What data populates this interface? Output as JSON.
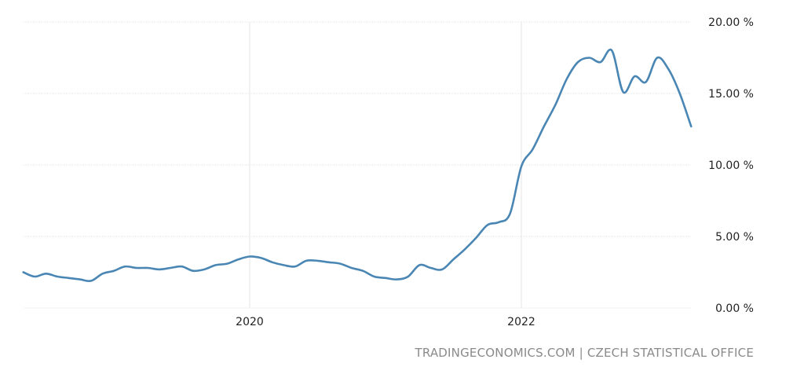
{
  "source_text": "TRADINGECONOMICS.COM | CZECH STATISTICAL OFFICE",
  "chart_data": {
    "type": "line",
    "title": "",
    "xlabel": "",
    "ylabel": "",
    "ylim": [
      0,
      20
    ],
    "y_ticks": [
      "0.00 %",
      "5.00 %",
      "10.00 %",
      "15.00 %",
      "20.00 %"
    ],
    "y_tick_values": [
      0,
      5,
      10,
      15,
      20
    ],
    "x_ticks": [
      "2020",
      "2022"
    ],
    "x_tick_values": [
      "2020-01",
      "2022-01"
    ],
    "grid": true,
    "colors": {
      "series": "#4a86b4",
      "grid": "#e6e6e6",
      "text": "#222222",
      "source": "#8a8a8a"
    },
    "series": [
      {
        "x": [
          "2018-05",
          "2018-06",
          "2018-07",
          "2018-08",
          "2018-09",
          "2018-10",
          "2018-11",
          "2018-12",
          "2019-01",
          "2019-02",
          "2019-03",
          "2019-04",
          "2019-05",
          "2019-06",
          "2019-07",
          "2019-08",
          "2019-09",
          "2019-10",
          "2019-11",
          "2019-12",
          "2020-01",
          "2020-02",
          "2020-03",
          "2020-04",
          "2020-05",
          "2020-06",
          "2020-07",
          "2020-08",
          "2020-09",
          "2020-10",
          "2020-11",
          "2020-12",
          "2021-01",
          "2021-02",
          "2021-03",
          "2021-04",
          "2021-05",
          "2021-06",
          "2021-07",
          "2021-08",
          "2021-09",
          "2021-10",
          "2021-11",
          "2021-12",
          "2022-01",
          "2022-02",
          "2022-03",
          "2022-04",
          "2022-05",
          "2022-06",
          "2022-07",
          "2022-08",
          "2022-09",
          "2022-10",
          "2022-11",
          "2022-12",
          "2023-01",
          "2023-02",
          "2023-03",
          "2023-04"
        ],
        "values": [
          2.5,
          2.2,
          2.4,
          2.2,
          2.1,
          2.0,
          1.9,
          2.4,
          2.6,
          2.9,
          2.8,
          2.8,
          2.7,
          2.8,
          2.9,
          2.6,
          2.7,
          3.0,
          3.1,
          3.4,
          3.6,
          3.5,
          3.2,
          3.0,
          2.9,
          3.3,
          3.3,
          3.2,
          3.1,
          2.8,
          2.6,
          2.2,
          2.1,
          2.0,
          2.2,
          3.0,
          2.8,
          2.7,
          3.4,
          4.1,
          4.9,
          5.8,
          6.0,
          6.6,
          9.9,
          11.1,
          12.7,
          14.2,
          16.0,
          17.2,
          17.5,
          17.2,
          18.0,
          15.1,
          16.2,
          15.8,
          17.5,
          16.7,
          15.0,
          12.7
        ]
      }
    ]
  }
}
